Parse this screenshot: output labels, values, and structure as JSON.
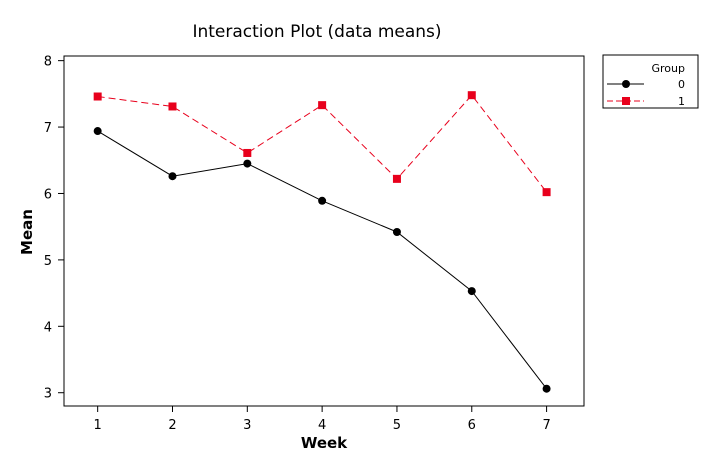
{
  "chart_data": {
    "type": "line",
    "title": "Interaction Plot (data means)",
    "xlabel": "Week",
    "ylabel": "Mean",
    "x": [
      1,
      2,
      3,
      4,
      5,
      6,
      7
    ],
    "xlim": [
      0.55,
      7.5
    ],
    "ylim": [
      2.8,
      8.07
    ],
    "yticks": [
      3,
      4,
      5,
      6,
      7,
      8
    ],
    "grid": false,
    "legend_title": "Group",
    "legend_position": "outside-top-right",
    "series": [
      {
        "name": "0",
        "values": [
          6.94,
          6.26,
          6.45,
          5.89,
          5.42,
          4.53,
          3.06
        ],
        "color": "#000000",
        "marker": "circle",
        "line_style": "solid"
      },
      {
        "name": "1",
        "values": [
          7.46,
          7.31,
          6.61,
          7.33,
          6.22,
          7.48,
          6.02
        ],
        "color": "#e8001c",
        "marker": "square",
        "line_style": "dashed"
      }
    ]
  }
}
